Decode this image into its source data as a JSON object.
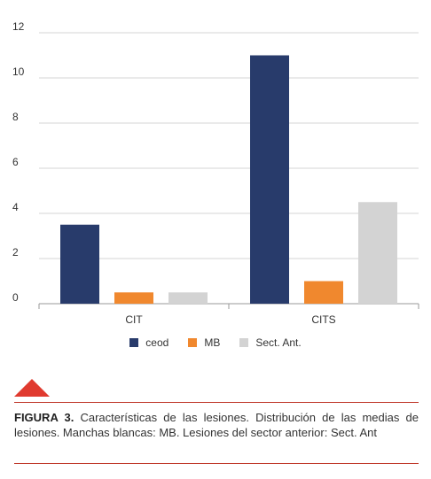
{
  "chart_data": {
    "type": "bar",
    "categories": [
      "CIT",
      "CITS"
    ],
    "series": [
      {
        "name": "ceod",
        "values": [
          3.5,
          11
        ],
        "color": "#283b6b"
      },
      {
        "name": "MB",
        "values": [
          0.5,
          1
        ],
        "color": "#f0882e"
      },
      {
        "name": "Sect. Ant.",
        "values": [
          0.5,
          4.5
        ],
        "color": "#d3d3d3"
      }
    ],
    "ylim": [
      0,
      12
    ],
    "yticks": [
      0,
      2,
      4,
      6,
      8,
      10,
      12
    ],
    "grid": true,
    "legend_position": "bottom"
  },
  "figure": {
    "label": "FIGURA 3.",
    "caption": " Características de las lesiones. Distribución de las medias de lesiones. Manchas blancas: MB. Lesiones del sector anterior: Sect. Ant"
  }
}
